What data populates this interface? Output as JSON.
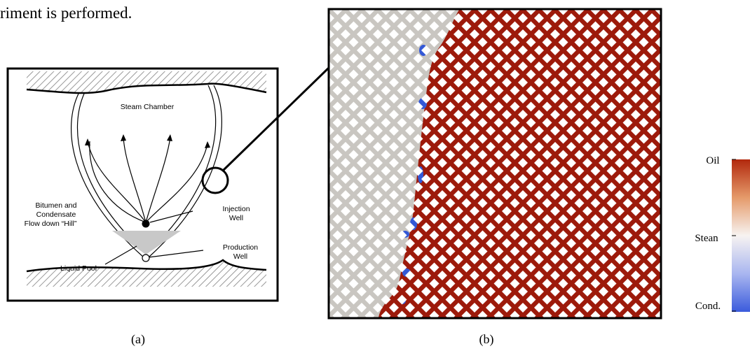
{
  "header": {
    "text": "riment is performed."
  },
  "panel_a": {
    "steam_chamber": "Steam Chamber",
    "flow_label": [
      "Bitumen and",
      "Condensate",
      "Flow down “Hill”"
    ],
    "injection": [
      "Injection",
      "Well"
    ],
    "production": [
      "Production",
      "Well"
    ],
    "liquid_pool": "Liquid Pool",
    "caption": "(a)"
  },
  "panel_b": {
    "caption": "(b)"
  },
  "colorbar": {
    "labels": [
      "Oil",
      "Stean",
      "Cond."
    ]
  }
}
